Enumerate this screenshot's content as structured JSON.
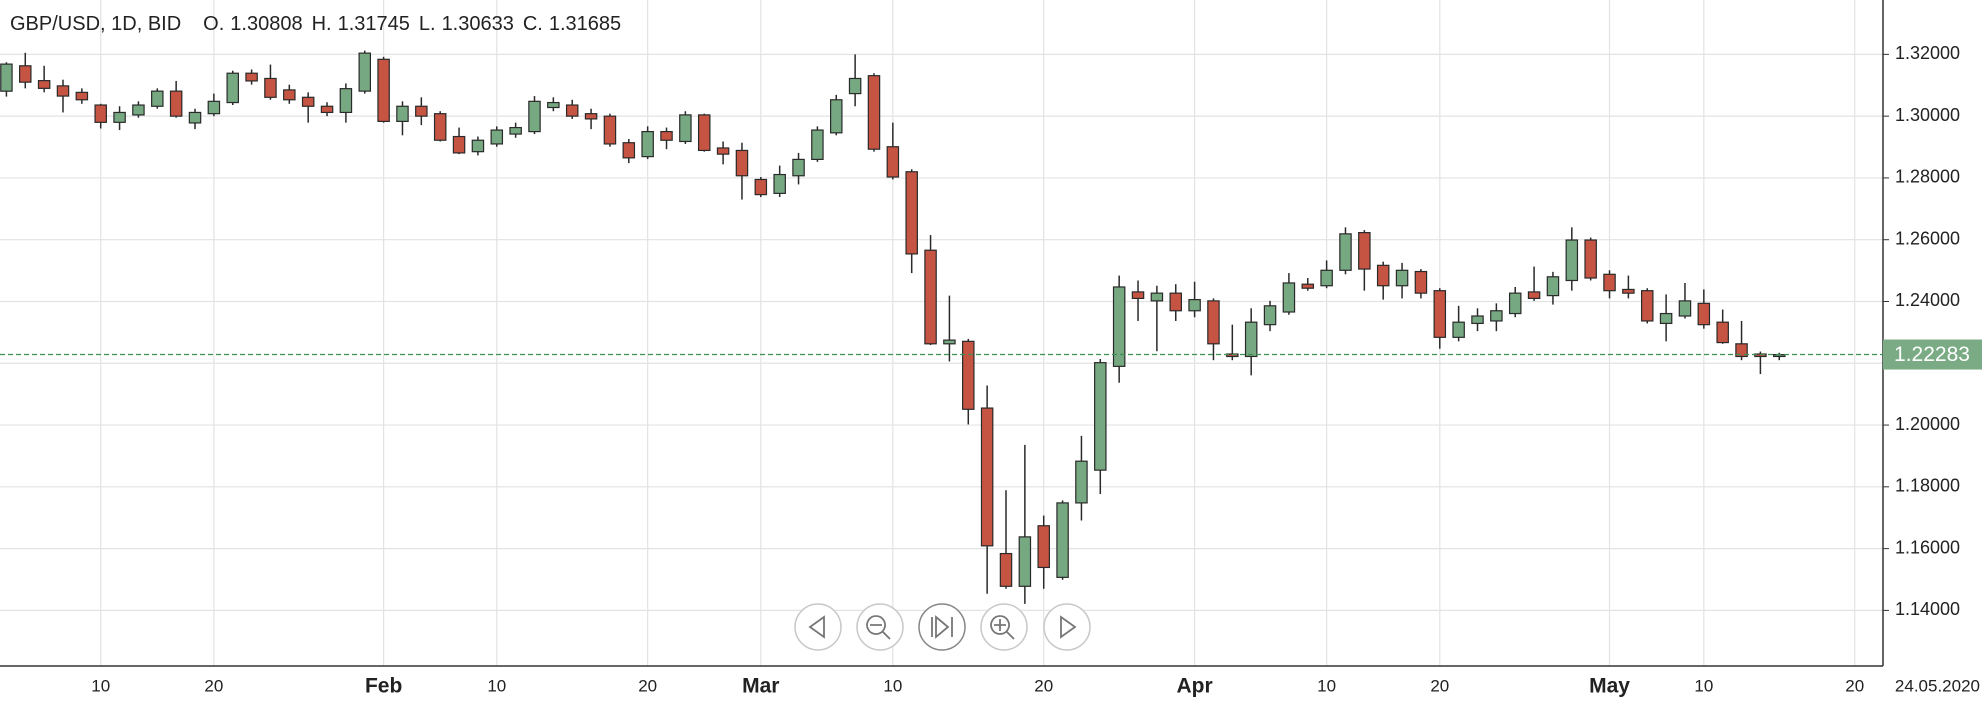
{
  "chart_data": {
    "type": "candlestick",
    "title": "GBP/USD, 1D, BID",
    "ohlc_labels": [
      "O.",
      "H.",
      "L.",
      "C."
    ],
    "categories": [
      null,
      null,
      null,
      null,
      null,
      "10",
      null,
      null,
      null,
      null,
      null,
      "20",
      null,
      null,
      null,
      null,
      null,
      null,
      null,
      null,
      "Feb",
      null,
      null,
      null,
      null,
      null,
      "10",
      null,
      null,
      null,
      null,
      null,
      null,
      null,
      "20",
      null,
      null,
      null,
      null,
      null,
      "Mar",
      null,
      null,
      null,
      null,
      null,
      null,
      "10",
      null,
      null,
      null,
      null,
      null,
      null,
      null,
      "20",
      null,
      null,
      null,
      null,
      null,
      null,
      null,
      "Apr",
      null,
      null,
      null,
      null,
      null,
      null,
      "10",
      null,
      null,
      null,
      null,
      null,
      "20",
      null,
      null,
      null,
      null,
      null,
      null,
      null,
      null,
      "May",
      null,
      null,
      null,
      null,
      "10",
      null,
      null,
      null,
      null,
      null,
      null,
      null,
      "20"
    ],
    "open": [
      1.30808,
      1.3163,
      1.3115,
      1.3098,
      1.3077,
      1.3036,
      1.298,
      1.3004,
      1.3032,
      1.3081,
      1.2978,
      1.3008,
      1.3044,
      1.3139,
      1.3122,
      1.3085,
      1.3061,
      1.3032,
      1.3012,
      1.3081,
      1.3184,
      1.2983,
      1.3032,
      1.3008,
      1.2934,
      1.2885,
      1.291,
      1.2942,
      1.295,
      1.3028,
      1.3036,
      1.3008,
      1.3,
      1.2914,
      1.2869,
      1.295,
      1.2918,
      1.3004,
      1.2897,
      1.2889,
      1.2795,
      1.275,
      1.2807,
      1.286,
      1.2946,
      1.3073,
      1.3131,
      1.2901,
      1.282,
      1.2566,
      1.2263,
      1.2271,
      1.2055,
      1.1584,
      1.1478,
      1.1674,
      1.1507,
      1.1748,
      1.1854,
      1.219,
      1.2431,
      1.2402,
      1.2427,
      1.237,
      1.2402,
      1.223,
      1.2222,
      1.2325,
      1.2366,
      1.2456,
      1.2451,
      1.2501,
      1.2623,
      1.2517,
      1.2451,
      1.2497,
      1.2435,
      1.2284,
      1.2329,
      1.2337,
      1.2361,
      1.2431,
      1.2419,
      1.2468,
      1.2599,
      1.2488,
      1.2439,
      1.2435,
      1.2329,
      1.2353,
      1.2394,
      1.2333,
      1.2263,
      1.223,
      1.2222,
      null,
      null,
      null,
      null
    ],
    "high": [
      1.31745,
      1.3205,
      1.3163,
      1.3118,
      1.309,
      1.304,
      1.3032,
      1.3048,
      1.309,
      1.3114,
      1.3024,
      1.3073,
      1.3147,
      1.3151,
      1.3167,
      1.3102,
      1.3077,
      1.3045,
      1.3106,
      1.3212,
      1.3192,
      1.3048,
      1.3061,
      1.3016,
      1.2963,
      1.2934,
      1.2967,
      1.2979,
      1.3065,
      1.3061,
      1.3053,
      1.3024,
      1.3008,
      1.2926,
      1.2967,
      1.2963,
      1.3016,
      1.3008,
      1.2918,
      1.2914,
      1.2803,
      1.284,
      1.2881,
      1.2967,
      1.3069,
      1.32,
      1.3139,
      1.2979,
      1.2828,
      1.2615,
      1.2419,
      1.2279,
      1.2128,
      1.1789,
      1.1936,
      1.1707,
      1.1756,
      1.1965,
      1.2214,
      1.2484,
      1.2468,
      1.2451,
      1.2456,
      1.2464,
      1.241,
      1.2325,
      1.2378,
      1.2402,
      1.2492,
      1.2476,
      1.2533,
      1.264,
      1.2631,
      1.2529,
      1.2525,
      1.2505,
      1.2443,
      1.2386,
      1.2378,
      1.2394,
      1.2447,
      1.2513,
      1.2496,
      1.264,
      1.2607,
      1.2501,
      1.2484,
      1.2443,
      1.2423,
      1.246,
      1.2439,
      1.2374,
      1.2337,
      1.2238,
      1.2234,
      null,
      null,
      null,
      null
    ],
    "low": [
      1.30633,
      1.309,
      1.3077,
      1.3012,
      1.304,
      1.296,
      1.2955,
      1.2995,
      1.3024,
      1.2995,
      1.2958,
      1.3,
      1.3036,
      1.3102,
      1.3053,
      1.304,
      1.2979,
      1.3,
      1.2979,
      1.3073,
      1.2979,
      1.2938,
      1.2971,
      1.2918,
      1.2877,
      1.2873,
      1.2901,
      1.293,
      1.2942,
      1.3016,
      1.2991,
      1.2958,
      1.2901,
      1.2848,
      1.2861,
      1.2893,
      1.291,
      1.2885,
      1.2844,
      1.273,
      1.2738,
      1.2738,
      1.2779,
      1.2852,
      1.2938,
      1.3032,
      1.2885,
      1.2795,
      1.2492,
      1.2259,
      1.2206,
      1.2002,
      1.1454,
      1.147,
      1.1421,
      1.147,
      1.1499,
      1.1691,
      1.1777,
      1.2137,
      1.2337,
      1.2239,
      1.2337,
      1.2349,
      1.221,
      1.221,
      1.2161,
      1.2304,
      1.2357,
      1.2435,
      1.2443,
      1.2488,
      1.2435,
      1.2406,
      1.241,
      1.241,
      1.2247,
      1.2271,
      1.2304,
      1.2304,
      1.2349,
      1.2402,
      1.239,
      1.2435,
      1.2468,
      1.241,
      1.241,
      1.2329,
      1.2271,
      1.2345,
      1.2312,
      1.2263,
      1.221,
      1.2165,
      1.221,
      null,
      null,
      null,
      null
    ],
    "close": [
      1.31685,
      1.311,
      1.309,
      1.3065,
      1.3053,
      1.298,
      1.3012,
      1.3036,
      1.3081,
      1.3,
      1.3012,
      1.3048,
      1.3139,
      1.3114,
      1.3061,
      1.3053,
      1.3032,
      1.3012,
      1.3089,
      1.3204,
      1.2983,
      1.3032,
      1.3,
      1.2922,
      1.2881,
      1.2922,
      1.2955,
      1.2963,
      1.3048,
      1.3044,
      1.3,
      1.2991,
      1.291,
      1.2865,
      1.295,
      1.2922,
      1.3004,
      1.2889,
      1.2877,
      1.2807,
      1.2746,
      1.2811,
      1.286,
      1.2955,
      1.3053,
      1.3122,
      1.2893,
      1.2803,
      1.2554,
      1.2263,
      1.2275,
      1.2051,
      1.1609,
      1.1478,
      1.1638,
      1.1539,
      1.1748,
      1.1883,
      1.2202,
      1.2447,
      1.241,
      1.2427,
      1.237,
      1.2406,
      1.2263,
      1.2222,
      1.2333,
      1.2386,
      1.246,
      1.2443,
      1.2501,
      1.2619,
      1.2505,
      1.2451,
      1.2501,
      1.2427,
      1.2284,
      1.2333,
      1.2353,
      1.237,
      1.2427,
      1.241,
      1.248,
      1.2599,
      1.2476,
      1.2435,
      1.2427,
      1.2337,
      1.2361,
      1.2402,
      1.2325,
      1.2267,
      1.2222,
      1.2222,
      1.2228,
      null,
      null,
      null,
      null
    ],
    "up_color": "#76a881",
    "down_color": "#c65443",
    "xlim": [
      -0.34,
      99.5
    ],
    "ylim": [
      1.122,
      1.3376
    ],
    "yticks": [
      {
        "value": 1.14,
        "label": "1.14000"
      },
      {
        "value": 1.16,
        "label": "1.16000"
      },
      {
        "value": 1.18,
        "label": "1.18000"
      },
      {
        "value": 1.2,
        "label": "1.20000"
      },
      {
        "value": 1.22,
        "label": "1.22000"
      },
      {
        "value": 1.24,
        "label": "1.24000"
      },
      {
        "value": 1.26,
        "label": "1.26000"
      },
      {
        "value": 1.28,
        "label": "1.28000"
      },
      {
        "value": 1.3,
        "label": "1.30000"
      },
      {
        "value": 1.32,
        "label": "1.32000"
      }
    ],
    "last_price": 1.22283,
    "last_price_color": "#7aab85",
    "end_date_label": "24.05.2020",
    "grid": true
  }
}
